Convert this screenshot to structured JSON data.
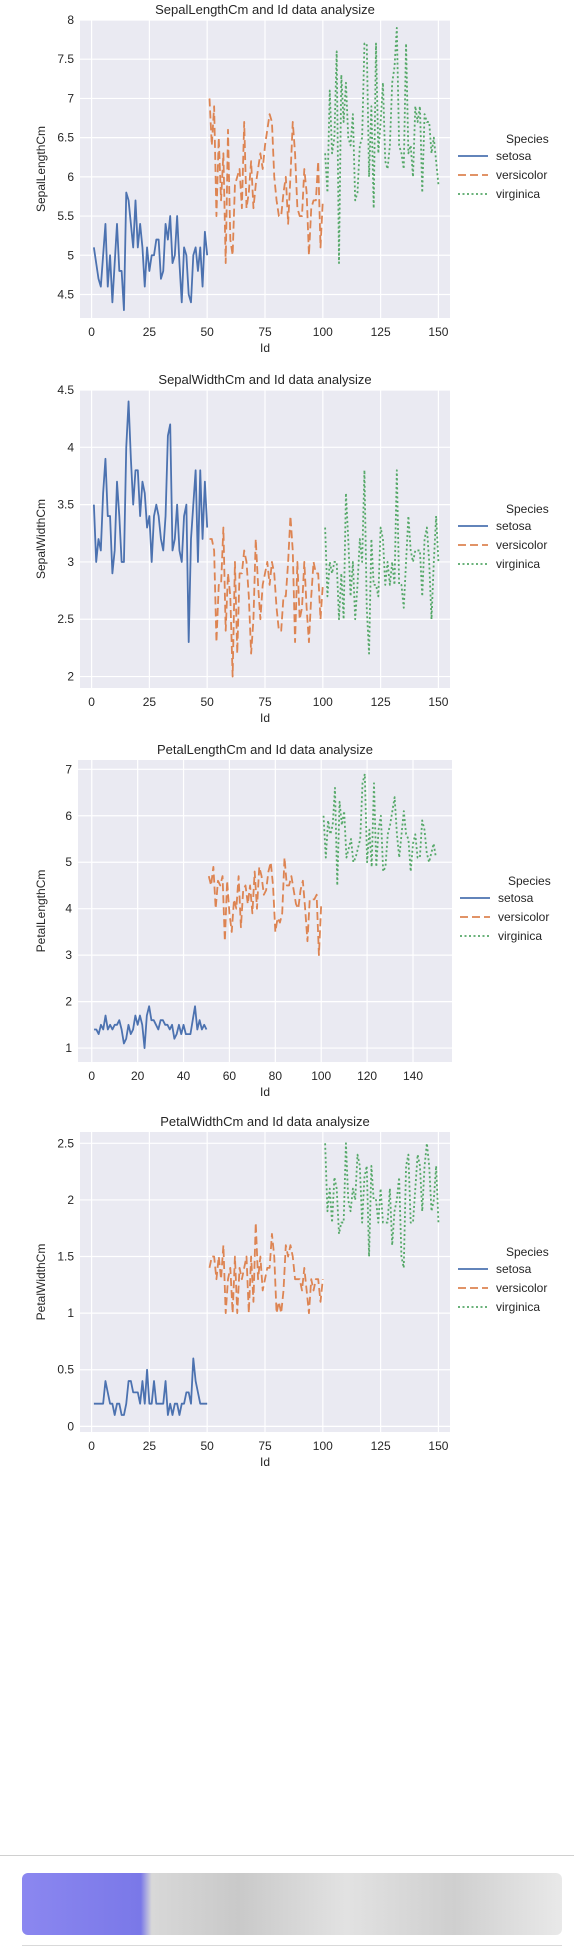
{
  "chart_data": [
    {
      "type": "line",
      "title": "SepalLengthCm and Id data analysize",
      "xlabel": "Id",
      "ylabel": "SepalLengthCm",
      "xlim": [
        -5,
        155
      ],
      "ylim": [
        4.2,
        8.0
      ],
      "xticks": [
        0,
        25,
        50,
        75,
        100,
        125,
        150
      ],
      "yticks": [
        4.5,
        5.0,
        5.5,
        6.0,
        6.5,
        7.0,
        7.5,
        8.0
      ],
      "legend_title": "Species",
      "series": [
        {
          "name": "setosa",
          "x_start": 1,
          "values": [
            5.1,
            4.9,
            4.7,
            4.6,
            5.0,
            5.4,
            4.6,
            5.0,
            4.4,
            4.9,
            5.4,
            4.8,
            4.8,
            4.3,
            5.8,
            5.7,
            5.4,
            5.1,
            5.7,
            5.1,
            5.4,
            5.1,
            4.6,
            5.1,
            4.8,
            5.0,
            5.0,
            5.2,
            5.2,
            4.7,
            4.8,
            5.4,
            5.2,
            5.5,
            4.9,
            5.0,
            5.5,
            4.9,
            4.4,
            5.1,
            5.0,
            4.5,
            4.4,
            5.0,
            5.1,
            4.8,
            5.1,
            4.6,
            5.3,
            5.0
          ]
        },
        {
          "name": "versicolor",
          "x_start": 51,
          "values": [
            7.0,
            6.4,
            6.9,
            5.5,
            6.5,
            5.7,
            6.3,
            4.9,
            6.6,
            5.2,
            5.0,
            5.9,
            6.0,
            6.1,
            5.6,
            6.7,
            5.6,
            5.8,
            6.2,
            5.6,
            5.9,
            6.1,
            6.3,
            6.1,
            6.4,
            6.6,
            6.8,
            6.7,
            6.0,
            5.7,
            5.5,
            5.5,
            5.8,
            6.0,
            5.4,
            6.0,
            6.7,
            6.3,
            5.6,
            5.5,
            5.5,
            6.1,
            5.8,
            5.0,
            5.6,
            5.7,
            5.7,
            6.2,
            5.1,
            5.7
          ]
        },
        {
          "name": "virginica",
          "x_start": 101,
          "values": [
            6.3,
            5.8,
            7.1,
            6.3,
            6.5,
            7.6,
            4.9,
            7.3,
            6.7,
            7.2,
            6.5,
            6.4,
            6.8,
            5.7,
            5.8,
            6.4,
            6.5,
            7.7,
            7.7,
            6.0,
            6.9,
            5.6,
            7.7,
            6.3,
            6.7,
            7.2,
            6.2,
            6.1,
            6.4,
            7.2,
            7.4,
            7.9,
            6.4,
            6.3,
            6.1,
            7.7,
            6.3,
            6.4,
            6.0,
            6.9,
            6.7,
            6.9,
            5.8,
            6.8,
            6.7,
            6.7,
            6.3,
            6.5,
            6.2,
            5.9
          ]
        }
      ]
    },
    {
      "type": "line",
      "title": "SepalWidthCm and Id data analysize",
      "xlabel": "Id",
      "ylabel": "SepalWidthCm",
      "xlim": [
        -5,
        155
      ],
      "ylim": [
        1.9,
        4.5
      ],
      "xticks": [
        0,
        25,
        50,
        75,
        100,
        125,
        150
      ],
      "yticks": [
        2.0,
        2.5,
        3.0,
        3.5,
        4.0,
        4.5
      ],
      "legend_title": "Species",
      "series": [
        {
          "name": "setosa",
          "x_start": 1,
          "values": [
            3.5,
            3.0,
            3.2,
            3.1,
            3.6,
            3.9,
            3.4,
            3.4,
            2.9,
            3.1,
            3.7,
            3.4,
            3.0,
            3.0,
            4.0,
            4.4,
            3.9,
            3.5,
            3.8,
            3.8,
            3.4,
            3.7,
            3.6,
            3.3,
            3.4,
            3.0,
            3.4,
            3.5,
            3.4,
            3.2,
            3.1,
            3.4,
            4.1,
            4.2,
            3.1,
            3.2,
            3.5,
            3.1,
            3.0,
            3.4,
            3.5,
            2.3,
            3.2,
            3.5,
            3.8,
            3.0,
            3.8,
            3.2,
            3.7,
            3.3
          ]
        },
        {
          "name": "versicolor",
          "x_start": 51,
          "values": [
            3.2,
            3.2,
            3.1,
            2.3,
            2.8,
            2.8,
            3.3,
            2.4,
            2.9,
            2.7,
            2.0,
            3.0,
            2.2,
            2.9,
            2.9,
            3.1,
            3.0,
            2.7,
            2.2,
            2.5,
            3.2,
            2.8,
            2.5,
            2.8,
            2.9,
            3.0,
            2.8,
            3.0,
            2.9,
            2.6,
            2.4,
            2.4,
            2.7,
            2.7,
            3.0,
            3.4,
            3.1,
            2.3,
            3.0,
            2.5,
            2.6,
            3.0,
            2.6,
            2.3,
            2.7,
            3.0,
            2.9,
            2.9,
            2.5,
            2.8
          ]
        },
        {
          "name": "virginica",
          "x_start": 101,
          "values": [
            3.3,
            2.7,
            3.0,
            2.9,
            3.0,
            3.0,
            2.5,
            2.9,
            2.5,
            3.6,
            3.2,
            2.7,
            3.0,
            2.5,
            2.8,
            3.2,
            3.0,
            3.8,
            2.6,
            2.2,
            3.2,
            2.8,
            2.8,
            2.7,
            3.3,
            3.2,
            2.8,
            3.0,
            2.8,
            3.0,
            2.8,
            3.8,
            2.8,
            2.8,
            2.6,
            3.0,
            3.4,
            3.1,
            3.0,
            3.1,
            3.1,
            3.1,
            2.7,
            3.2,
            3.3,
            3.0,
            2.5,
            3.0,
            3.4,
            3.0
          ]
        }
      ]
    },
    {
      "type": "line",
      "title": "PetalLengthCm and Id data analysize",
      "xlabel": "Id",
      "ylabel": "PetalLengthCm",
      "xlim": [
        -6,
        157
      ],
      "ylim": [
        0.7,
        7.2
      ],
      "xticks": [
        0,
        20,
        40,
        60,
        80,
        100,
        120,
        140
      ],
      "yticks": [
        1,
        2,
        3,
        4,
        5,
        6,
        7
      ],
      "legend_title": "Species",
      "series": [
        {
          "name": "setosa",
          "x_start": 1,
          "values": [
            1.4,
            1.4,
            1.3,
            1.5,
            1.4,
            1.7,
            1.4,
            1.5,
            1.4,
            1.5,
            1.5,
            1.6,
            1.4,
            1.1,
            1.2,
            1.5,
            1.3,
            1.4,
            1.7,
            1.5,
            1.7,
            1.5,
            1.0,
            1.7,
            1.9,
            1.6,
            1.6,
            1.5,
            1.4,
            1.6,
            1.6,
            1.5,
            1.5,
            1.4,
            1.5,
            1.2,
            1.3,
            1.5,
            1.3,
            1.5,
            1.3,
            1.3,
            1.3,
            1.6,
            1.9,
            1.4,
            1.6,
            1.4,
            1.5,
            1.4
          ]
        },
        {
          "name": "versicolor",
          "x_start": 51,
          "values": [
            4.7,
            4.5,
            4.9,
            4.0,
            4.6,
            4.5,
            4.7,
            3.3,
            4.6,
            3.9,
            3.5,
            4.2,
            4.0,
            4.7,
            3.6,
            4.4,
            4.5,
            4.1,
            4.5,
            3.9,
            4.8,
            4.0,
            4.9,
            4.7,
            4.3,
            4.4,
            4.8,
            5.0,
            4.5,
            3.5,
            3.8,
            3.7,
            3.9,
            5.1,
            4.5,
            4.5,
            4.7,
            4.4,
            4.1,
            4.0,
            4.4,
            4.6,
            4.0,
            3.3,
            4.2,
            4.2,
            4.2,
            4.3,
            3.0,
            4.1
          ]
        },
        {
          "name": "virginica",
          "x_start": 101,
          "values": [
            6.0,
            5.1,
            5.9,
            5.6,
            5.8,
            6.6,
            4.5,
            6.3,
            5.8,
            6.1,
            5.1,
            5.3,
            5.5,
            5.0,
            5.1,
            5.3,
            5.5,
            6.7,
            6.9,
            5.0,
            5.7,
            4.9,
            6.7,
            4.9,
            5.7,
            6.0,
            4.8,
            4.9,
            5.6,
            5.8,
            6.1,
            6.4,
            5.6,
            5.1,
            5.6,
            6.1,
            5.6,
            5.5,
            4.8,
            5.4,
            5.6,
            5.1,
            5.1,
            5.9,
            5.7,
            5.2,
            5.0,
            5.2,
            5.4,
            5.1
          ]
        }
      ]
    },
    {
      "type": "line",
      "title": "PetalWidthCm and Id data analysize",
      "xlabel": "Id",
      "ylabel": "PetalWidthCm",
      "xlim": [
        -5,
        155
      ],
      "ylim": [
        -0.05,
        2.6
      ],
      "xticks": [
        0,
        25,
        50,
        75,
        100,
        125,
        150
      ],
      "yticks": [
        0.0,
        0.5,
        1.0,
        1.5,
        2.0,
        2.5
      ],
      "legend_title": "Species",
      "series": [
        {
          "name": "setosa",
          "x_start": 1,
          "values": [
            0.2,
            0.2,
            0.2,
            0.2,
            0.2,
            0.4,
            0.3,
            0.2,
            0.2,
            0.1,
            0.2,
            0.2,
            0.1,
            0.1,
            0.2,
            0.4,
            0.4,
            0.3,
            0.3,
            0.3,
            0.2,
            0.4,
            0.2,
            0.5,
            0.2,
            0.2,
            0.4,
            0.2,
            0.2,
            0.2,
            0.2,
            0.4,
            0.1,
            0.2,
            0.1,
            0.2,
            0.2,
            0.1,
            0.2,
            0.2,
            0.3,
            0.3,
            0.2,
            0.6,
            0.4,
            0.3,
            0.2,
            0.2,
            0.2,
            0.2
          ]
        },
        {
          "name": "versicolor",
          "x_start": 51,
          "values": [
            1.4,
            1.5,
            1.5,
            1.3,
            1.5,
            1.3,
            1.6,
            1.0,
            1.3,
            1.4,
            1.0,
            1.5,
            1.0,
            1.4,
            1.3,
            1.4,
            1.5,
            1.0,
            1.5,
            1.1,
            1.8,
            1.3,
            1.5,
            1.2,
            1.3,
            1.4,
            1.4,
            1.7,
            1.5,
            1.0,
            1.1,
            1.0,
            1.2,
            1.6,
            1.5,
            1.6,
            1.5,
            1.3,
            1.3,
            1.3,
            1.2,
            1.4,
            1.2,
            1.0,
            1.3,
            1.2,
            1.3,
            1.3,
            1.1,
            1.3
          ]
        },
        {
          "name": "virginica",
          "x_start": 101,
          "values": [
            2.5,
            1.9,
            2.1,
            1.8,
            2.2,
            2.1,
            1.7,
            1.8,
            1.8,
            2.5,
            2.0,
            1.9,
            2.1,
            2.0,
            2.4,
            2.3,
            1.8,
            2.2,
            2.3,
            1.5,
            2.3,
            2.0,
            2.0,
            1.8,
            2.1,
            1.8,
            1.8,
            1.8,
            2.1,
            1.6,
            1.9,
            2.0,
            2.2,
            1.5,
            1.4,
            2.3,
            2.4,
            1.8,
            1.8,
            2.1,
            2.4,
            2.3,
            1.9,
            2.3,
            2.5,
            2.3,
            1.9,
            2.0,
            2.3,
            1.8
          ]
        }
      ]
    }
  ],
  "style": {
    "plot_bg": "#eaeaf2",
    "grid": "#ffffff",
    "text": "#262626",
    "series_colors": [
      "#4c72b0",
      "#dd8452",
      "#55a868"
    ]
  }
}
